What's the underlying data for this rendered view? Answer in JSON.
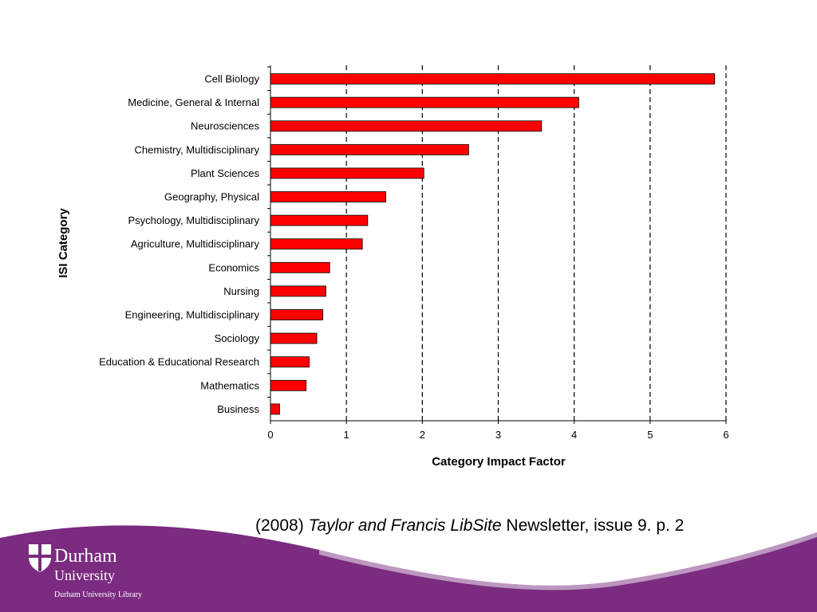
{
  "chart_data": {
    "type": "bar",
    "orientation": "horizontal",
    "categories": [
      "Cell Biology",
      "Medicine, General & Internal",
      "Neurosciences",
      "Chemistry, Multidisciplinary",
      "Plant Sciences",
      "Geography, Physical",
      "Psychology, Multidisciplinary",
      "Agriculture, Multidisciplinary",
      "Economics",
      "Nursing",
      "Engineering, Multidisciplinary",
      "Sociology",
      "Education & Educational Research",
      "Mathematics",
      "Business"
    ],
    "values": [
      5.85,
      4.06,
      3.57,
      2.61,
      2.02,
      1.52,
      1.28,
      1.21,
      0.78,
      0.73,
      0.69,
      0.61,
      0.51,
      0.47,
      0.12
    ],
    "xlabel": "Category Impact Factor",
    "ylabel": "ISI Category",
    "xlim": [
      0,
      6
    ],
    "xticks": [
      "0",
      "1",
      "2",
      "3",
      "4",
      "5",
      "6"
    ],
    "grid": "dashed vertical lines",
    "bar_color": "#ff0000"
  },
  "citation": {
    "year": "(2008)",
    "title": "Taylor and Francis  LibSite",
    "rest": "Newsletter, issue 9. p. 2"
  },
  "footer": {
    "brand_color": "#7b2b80",
    "logo_line1": "Durham",
    "logo_line2": "University",
    "logo_sub": "Durham University Library",
    "crest_icon": "durham-crest-icon"
  }
}
